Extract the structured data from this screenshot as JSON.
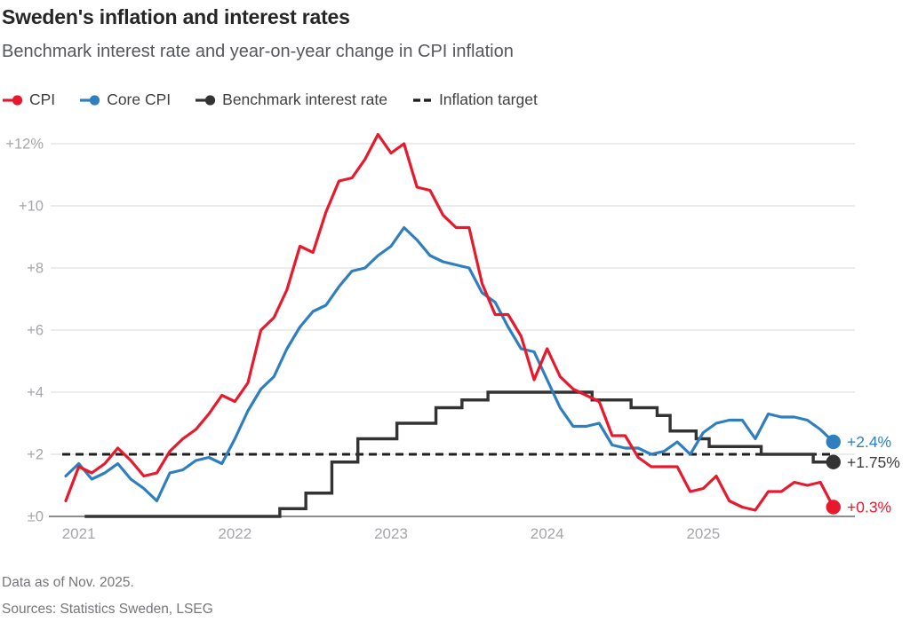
{
  "header": {
    "title": "Sweden's inflation and interest rates",
    "subtitle": "Benchmark interest rate and year-on-year change in CPI inflation"
  },
  "footer": {
    "line1": "Data as of Nov. 2025.",
    "line2": "Sources: Statistics Sweden, LSEG"
  },
  "colors": {
    "cpi": "#e6192d",
    "core_cpi": "#2e7ec0",
    "benchmark": "#333333",
    "target": "#1f1f1f",
    "gridline": "#d9d9d9",
    "zero_axis": "#7d7d7d",
    "tick_text": "#a6a6aa"
  },
  "chart_data": {
    "type": "line",
    "unit": "percent",
    "frequency": "monthly",
    "x_start": "Dec 2020",
    "x_end": "Nov 2025",
    "grid": true,
    "legend_position": "top",
    "ylim": [
      0,
      12.4
    ],
    "axes": {
      "y": {
        "ticks": [
          {
            "v": 12,
            "label": "+12%"
          },
          {
            "v": 10,
            "label": "+10"
          },
          {
            "v": 8,
            "label": "+8"
          },
          {
            "v": 6,
            "label": "+6"
          },
          {
            "v": 4,
            "label": "+4"
          },
          {
            "v": 2,
            "label": "+2"
          },
          {
            "v": 0,
            "label": "±0"
          }
        ]
      },
      "x": {
        "ticks": [
          {
            "i": 1,
            "label": "2021"
          },
          {
            "i": 13,
            "label": "2022"
          },
          {
            "i": 25,
            "label": "2023"
          },
          {
            "i": 37,
            "label": "2024"
          },
          {
            "i": 49,
            "label": "2025"
          }
        ]
      }
    },
    "series": [
      {
        "name": "CPI",
        "color": "#e6192d",
        "end_label": "+0.3%",
        "values": [
          0.5,
          1.6,
          1.4,
          1.7,
          2.2,
          1.8,
          1.3,
          1.4,
          2.1,
          2.5,
          2.8,
          3.3,
          3.9,
          3.7,
          4.3,
          6.0,
          6.4,
          7.3,
          8.7,
          8.5,
          9.8,
          10.8,
          10.9,
          11.5,
          12.3,
          11.7,
          12.0,
          10.6,
          10.5,
          9.7,
          9.3,
          9.3,
          7.5,
          6.5,
          6.5,
          5.8,
          4.4,
          5.4,
          4.5,
          4.1,
          3.9,
          3.7,
          2.6,
          2.6,
          1.9,
          1.6,
          1.6,
          1.6,
          0.8,
          0.9,
          1.3,
          0.5,
          0.3,
          0.2,
          0.8,
          0.8,
          1.1,
          1.0,
          1.1,
          0.3
        ]
      },
      {
        "name": "Core CPI",
        "color": "#2e7ec0",
        "end_label": "+2.4%",
        "values": [
          1.3,
          1.7,
          1.2,
          1.4,
          1.7,
          1.2,
          0.9,
          0.5,
          1.4,
          1.5,
          1.8,
          1.9,
          1.7,
          2.5,
          3.4,
          4.1,
          4.5,
          5.4,
          6.1,
          6.6,
          6.8,
          7.4,
          7.9,
          8.0,
          8.4,
          8.7,
          9.3,
          8.9,
          8.4,
          8.2,
          8.1,
          8.0,
          7.2,
          6.9,
          6.1,
          5.4,
          5.3,
          4.4,
          3.5,
          2.9,
          2.9,
          3.0,
          2.3,
          2.2,
          2.2,
          2.0,
          2.1,
          2.4,
          2.0,
          2.7,
          3.0,
          3.1,
          3.1,
          2.5,
          3.3,
          3.2,
          3.2,
          3.1,
          2.8,
          2.4
        ]
      },
      {
        "name": "Benchmark interest rate",
        "type": "step",
        "color": "#333333",
        "end_label": "+1.75%",
        "start_index": 2,
        "values": [
          0,
          0,
          0,
          0,
          0,
          0,
          0,
          0,
          0,
          0,
          0,
          0,
          0,
          0,
          0,
          0,
          0,
          0.25,
          0.25,
          0.75,
          0.75,
          1.75,
          1.75,
          2.5,
          2.5,
          2.5,
          3.0,
          3.0,
          3.0,
          3.5,
          3.5,
          3.75,
          3.75,
          4.0,
          4.0,
          4.0,
          4.0,
          4.0,
          4.0,
          4.0,
          4.0,
          3.75,
          3.75,
          3.75,
          3.5,
          3.5,
          3.25,
          2.75,
          2.75,
          2.5,
          2.25,
          2.25,
          2.25,
          2.25,
          2.0,
          2.0,
          2.0,
          2.0,
          1.75,
          1.75
        ]
      },
      {
        "name": "Inflation target",
        "type": "target",
        "color": "#1f1f1f",
        "value": 2
      }
    ]
  }
}
